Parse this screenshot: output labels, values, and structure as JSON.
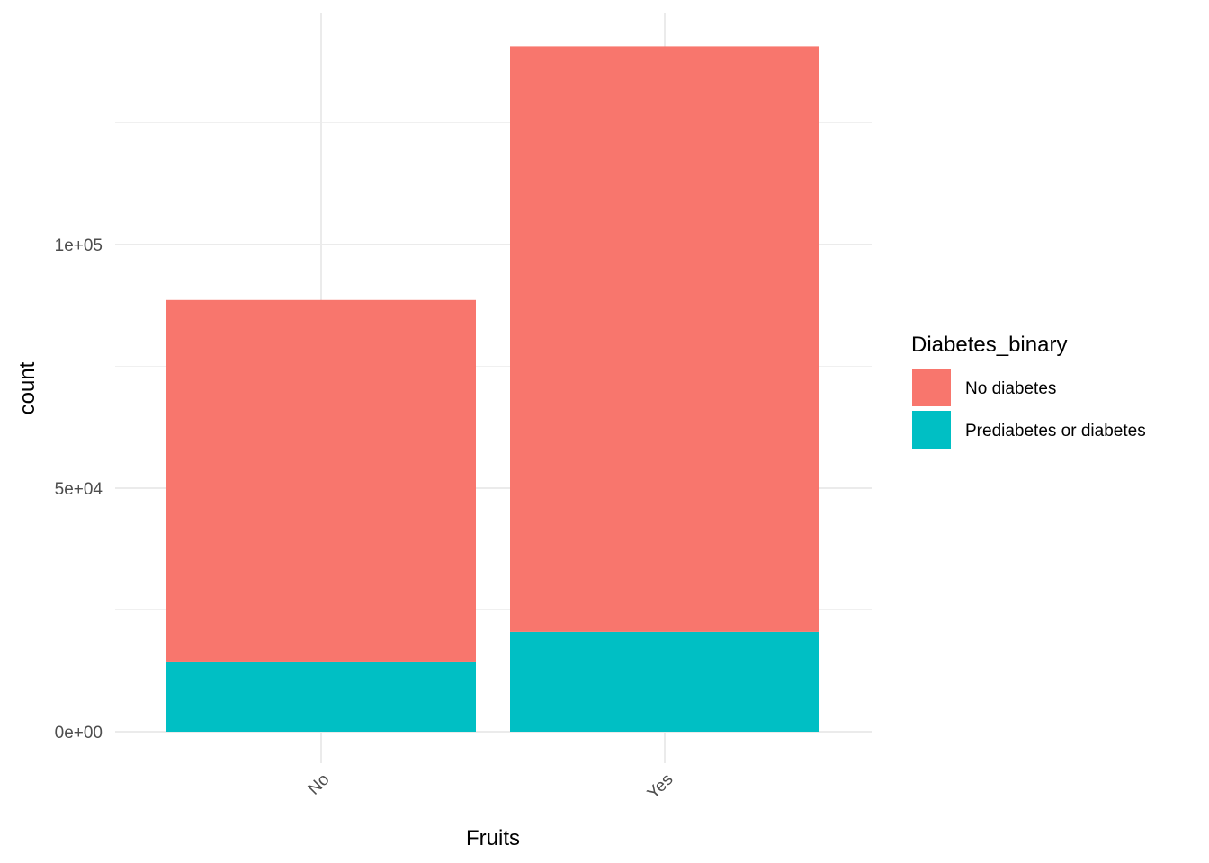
{
  "chart_data": {
    "type": "bar",
    "stacked": true,
    "title": "",
    "xlabel": "Fruits",
    "ylabel": "count",
    "categories": [
      "No",
      "Yes"
    ],
    "series": [
      {
        "name": "No diabetes",
        "color": "#F8766D",
        "values": [
          74200,
          120200
        ]
      },
      {
        "name": "Prediabetes or diabetes",
        "color": "#00BFC4",
        "values": [
          14400,
          20500
        ]
      }
    ],
    "ylim": [
      0,
      140000
    ],
    "yticks": [
      0,
      50000,
      100000
    ],
    "ytick_labels": [
      "0e+00",
      "5e+04",
      "1e+05"
    ],
    "minor_yticks": [
      25000,
      75000,
      125000
    ],
    "grid": true,
    "x_tick_rotation_deg": 45,
    "legend": {
      "title": "Diabetes_binary",
      "placement": "right"
    }
  }
}
